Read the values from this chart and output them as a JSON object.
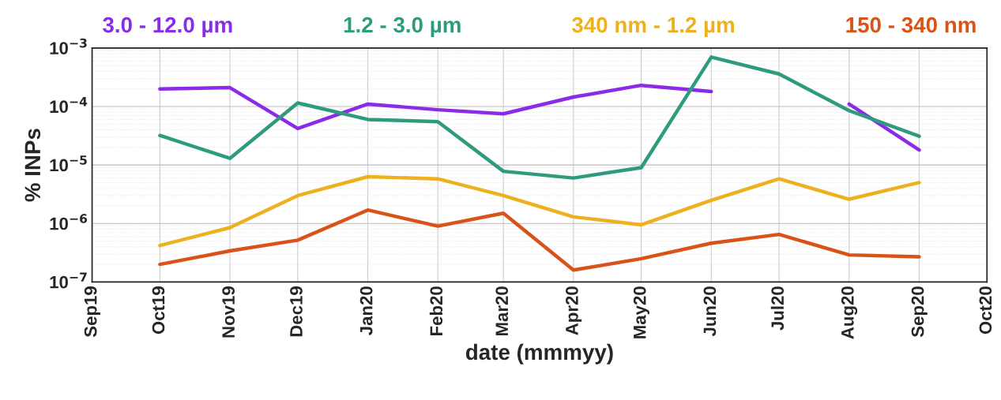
{
  "chart_data": {
    "type": "line",
    "xlabel": "date (mmmyy)",
    "ylabel": "% INPs",
    "x": [
      "2019-10",
      "2019-11",
      "2019-12",
      "2020-01",
      "2020-02",
      "2020-03",
      "2020-04",
      "2020-05",
      "2020-06",
      "2020-07",
      "2020-08",
      "2020-09"
    ],
    "series": [
      {
        "name": "3.0 - 12.0 µm",
        "color": "#8b2be8",
        "values": [
          0.0002,
          0.00021,
          4.2e-05,
          0.00011,
          8.8e-05,
          7.5e-05,
          0.000145,
          0.00023,
          0.00018,
          null,
          0.00011,
          1.8e-05
        ]
      },
      {
        "name": "1.2 - 3.0 µm",
        "color": "#2e9a7e",
        "values": [
          3.2e-05,
          1.3e-05,
          0.000115,
          6e-05,
          5.5e-05,
          7.8e-06,
          6e-06,
          9e-06,
          0.0007,
          0.00036,
          8.5e-05,
          3.1e-05
        ]
      },
      {
        "name": "340 nm - 1.2 µm",
        "color": "#edb120",
        "values": [
          4.2e-07,
          8.5e-07,
          3e-06,
          6.3e-06,
          5.8e-06,
          3e-06,
          1.3e-06,
          9.5e-07,
          2.5e-06,
          5.8e-06,
          2.6e-06,
          5e-06
        ]
      },
      {
        "name": "150 - 340 nm",
        "color": "#d95319",
        "values": [
          2e-07,
          3.4e-07,
          5.2e-07,
          1.7e-06,
          9e-07,
          1.5e-06,
          1.6e-07,
          2.5e-07,
          4.6e-07,
          6.5e-07,
          2.9e-07,
          2.7e-07
        ]
      }
    ],
    "log": "y",
    "ylim": [
      1e-07,
      0.001
    ],
    "yticks": [
      {
        "value": 1e-07,
        "label": "10$^{−7}$"
      },
      {
        "value": 1e-06,
        "label": "10$^{−6}$"
      },
      {
        "value": 1e-05,
        "label": "10$^{−5}$"
      },
      {
        "value": 0.0001,
        "label": "10$^{−4}$"
      },
      {
        "value": 0.001,
        "label": "10$^{−3}$"
      }
    ],
    "xlim": [
      "2019-09",
      "2020-10"
    ],
    "xticks": [
      {
        "value": "2019-09",
        "label": "Sep19"
      },
      {
        "value": "2019-10",
        "label": "Oct19"
      },
      {
        "value": "2019-11",
        "label": "Nov19"
      },
      {
        "value": "2019-12",
        "label": "Dec19"
      },
      {
        "value": "2020-01",
        "label": "Jan20"
      },
      {
        "value": "2020-02",
        "label": "Feb20"
      },
      {
        "value": "2020-03",
        "label": "Mar20"
      },
      {
        "value": "2020-04",
        "label": "Apr20"
      },
      {
        "value": "2020-05",
        "label": "May20"
      },
      {
        "value": "2020-06",
        "label": "Jun20"
      },
      {
        "value": "2020-07",
        "label": "Jul20"
      },
      {
        "value": "2020-08",
        "label": "Aug20"
      },
      {
        "value": "2020-09",
        "label": "Sep20"
      },
      {
        "value": "2020-10",
        "label": "Oct20"
      }
    ],
    "grid": true,
    "legend": "top",
    "marker": "none",
    "line_style": "solid"
  }
}
